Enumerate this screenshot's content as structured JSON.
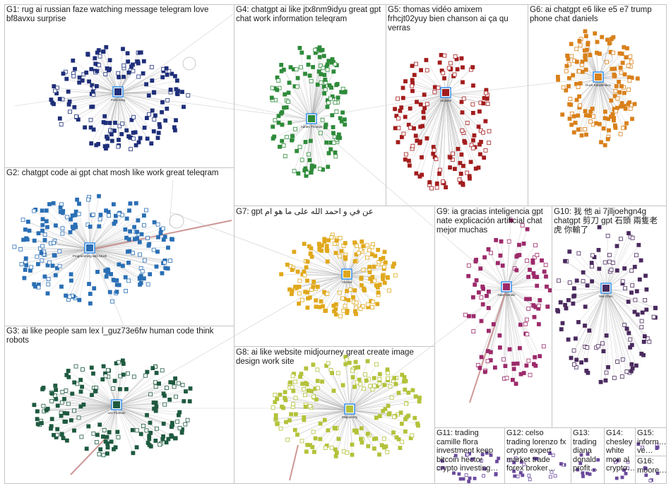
{
  "groups": [
    {
      "id": "G1",
      "label": "G1: rug ai russian faze watching message telegram love\nbf8avxu surprise",
      "color": "#1f2f7a",
      "hub": "Pollo Mag"
    },
    {
      "id": "G2",
      "label": "G2: chatgpt code ai gpt chat mosh like work great teleqram",
      "color": "#2a6fb5",
      "hub": "Programming with Mosh"
    },
    {
      "id": "G3",
      "label": "G3: ai like people sam lex l_guz73e6fw human code think\nrobots",
      "color": "#1f5a40",
      "hub": "Lex Fridman"
    },
    {
      "id": "G4",
      "label": "G4: chatgpt ai like jtx8nm9idyu great gpt\nchat work information teleqram",
      "color": "#2e8b3a",
      "hub": "Adrien Thomas"
    },
    {
      "id": "G5",
      "label": "G5: thomas vidéo amixem\nfrhcjt02yuy bien chanson ai ça qu\nverras",
      "color": "#a31d1d",
      "hub": "Amixem"
    },
    {
      "id": "G6",
      "label": "G6: ai chatgpt e6 like e5 e7 trump\nphone chat daniels",
      "color": "#d9801a",
      "hub": "Duck Kalashnikov"
    },
    {
      "id": "G7",
      "label": "G7: gpt عن في و احمد الله على ما هو ام",
      "color": "#e0a81c",
      "hub": "Ahmed"
    },
    {
      "id": "G8",
      "label": "G8: ai like website midjourney great create image\ndesign work site",
      "color": "#b3c23a",
      "hub": "Midjourney"
    },
    {
      "id": "G9",
      "label": "G9: ia gracias inteligencia gpt\nnate explicación artificial chat\nmejor muchas",
      "color": "#9c2a6a",
      "hub": "Nate Gentile"
    },
    {
      "id": "G10",
      "label": "G10: 我 他 ai 7jlljoehgn4g\nchatgpt 剪刀 gpt 石頭 兩隻老\n虎 你輸了",
      "color": "#4a2a5e",
      "hub": "Mia Chen"
    },
    {
      "id": "G11",
      "label": "G11: trading\ncamille flora\ninvestment keep\nbitcoin hector\ncrypto investing…",
      "color": "#6b4a9e",
      "hub": ""
    },
    {
      "id": "G12",
      "label": "G12: celso\ntrading lorenzo fx\ncrypto expert\nmarket trade\nforex broker…",
      "color": "#6b4a9e",
      "hub": ""
    },
    {
      "id": "G13",
      "label": "G13: trading\ndiana\ndonald\nprofit…",
      "color": "#6b4a9e",
      "hub": ""
    },
    {
      "id": "G14",
      "label": "G14: chesley\nwhite\nmon al\ncrypto…",
      "color": "#6b4a9e",
      "hub": ""
    },
    {
      "id": "G15",
      "label": "G15: inform…\nve…",
      "color": "#6b4a9e",
      "hub": ""
    },
    {
      "id": "G16",
      "label": "G16:\nmoore…",
      "color": "#6b4a9e",
      "hub": ""
    }
  ],
  "colors": {
    "border": "#c4c4c4",
    "edge": "#a8a8a8",
    "strong_edge": "#c98c8c",
    "hub_border": "#2b8cf0"
  }
}
